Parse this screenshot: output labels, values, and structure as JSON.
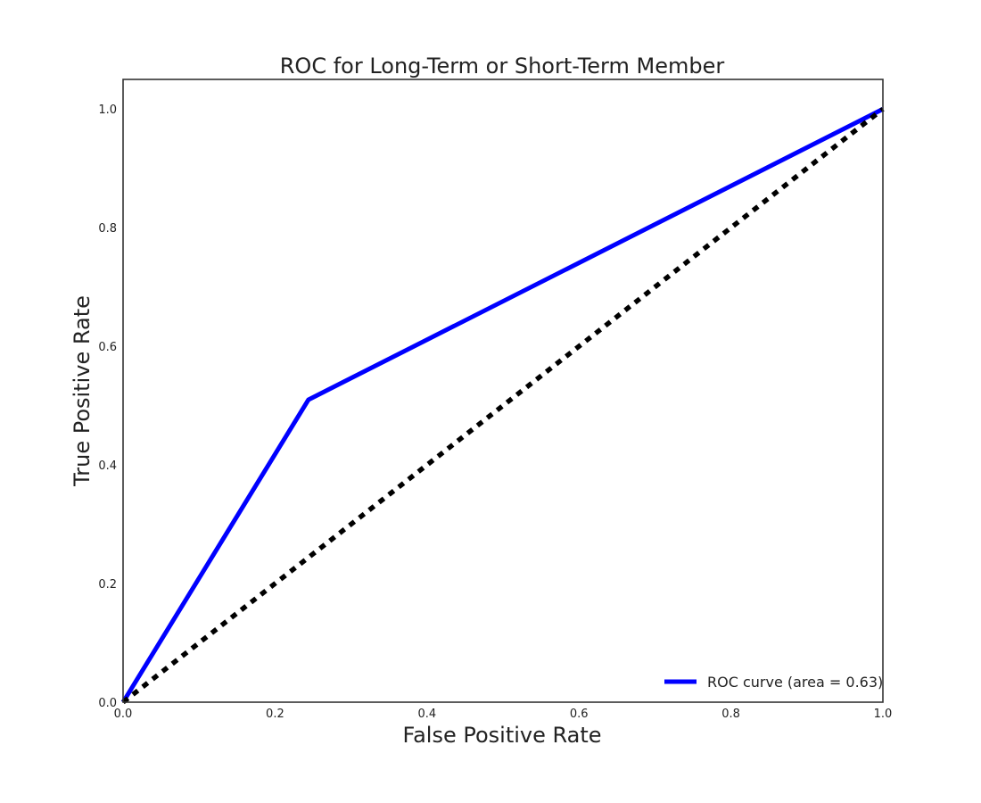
{
  "chart_data": {
    "type": "line",
    "title": "ROC for Long-Term or Short-Term Member",
    "xlabel": "False Positive Rate",
    "ylabel": "True Positive Rate",
    "xlim": [
      0.0,
      1.0
    ],
    "ylim": [
      0.0,
      1.05
    ],
    "xticks": [
      0.0,
      0.2,
      0.4,
      0.6,
      0.8,
      1.0
    ],
    "yticks": [
      0.0,
      0.2,
      0.4,
      0.6,
      0.8,
      1.0
    ],
    "xtick_labels": [
      "0.0",
      "0.2",
      "0.4",
      "0.6",
      "0.8",
      "1.0"
    ],
    "ytick_labels": [
      "0.0",
      "0.2",
      "0.4",
      "0.6",
      "0.8",
      "1.0"
    ],
    "grid": false,
    "legend_position": "lower-right",
    "series": [
      {
        "name": "ROC curve (area = 0.63)",
        "color": "#0000ff",
        "style": "solid",
        "x": [
          0.0,
          0.244,
          1.0
        ],
        "y": [
          0.0,
          0.51,
          1.0
        ]
      },
      {
        "color": "#000000",
        "style": "dashed",
        "x": [
          0.0,
          1.0
        ],
        "y": [
          0.0,
          1.0
        ]
      }
    ]
  }
}
